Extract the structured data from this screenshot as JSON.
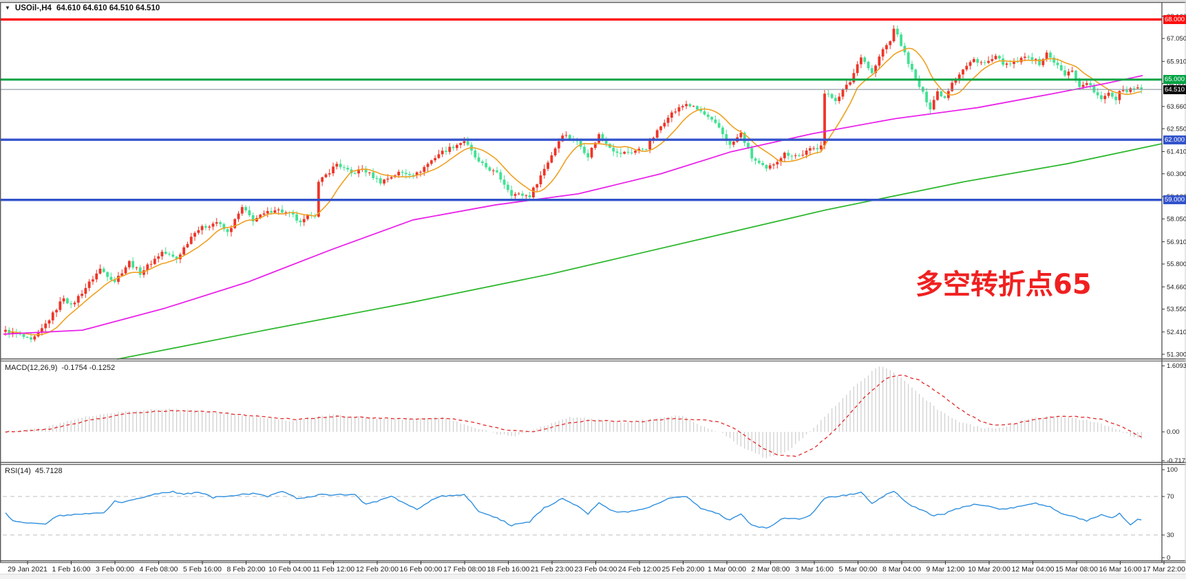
{
  "info_bar": {
    "symbol": "USOil-,H4",
    "ohlc_text": "64.610 64.610 64.510 64.510"
  },
  "annotation": {
    "text": "多空转折点65",
    "color": "#f02020"
  },
  "indicators": {
    "macd": {
      "label": "MACD(12,26,9)",
      "values_text": "-0.1754 -0.1252"
    },
    "rsi": {
      "label": "RSI(14)",
      "value_text": "45.7128"
    }
  },
  "colors": {
    "bull": "#ee3528",
    "bear": "#41e293",
    "ma_orange": "#efa020",
    "ma_magenta": "#e922e9",
    "ma_green": "#2eb82e",
    "hline_red": "#fe0d0d",
    "hline_green": "#00a344",
    "hline_blue": "#3353cb",
    "price_line": "#85919b",
    "price_badge_bg": "#0c0c0c",
    "macd_hist": "#cdcdcd",
    "macd_signal": "#e02828",
    "rsi_line": "#2e8ede",
    "level_dash": "#bdbdbd",
    "axis_text": "#1c1c1c",
    "border": "#5a5a5a"
  },
  "chart_data": {
    "type": "candlestick",
    "symbol": "USOil-",
    "timeframe": "H4",
    "title": "USOil-,H4 64.610 64.610 64.510 64.510",
    "legend_note": "red = bullish candle, green = bearish candle (CN convention)",
    "x_labels": [
      "29 Jan 2021",
      "1 Feb 16:00",
      "3 Feb 00:00",
      "4 Feb 08:00",
      "5 Feb 16:00",
      "8 Feb 20:00",
      "10 Feb 04:00",
      "11 Feb 12:00",
      "12 Feb 20:00",
      "16 Feb 00:00",
      "17 Feb 08:00",
      "18 Feb 16:00",
      "21 Feb 23:00",
      "23 Feb 04:00",
      "24 Feb 12:00",
      "25 Feb 20:00",
      "1 Mar 00:00",
      "2 Mar 08:00",
      "3 Mar 16:00",
      "5 Mar 00:00",
      "8 Mar 04:00",
      "9 Mar 12:00",
      "10 Mar 20:00",
      "12 Mar 04:00",
      "15 Mar 08:00",
      "16 Mar 16:00",
      "17 Mar 22:00"
    ],
    "main": {
      "ylim": [
        51.3,
        68.16
      ],
      "y_ticks": [
        {
          "label": "68.160",
          "p": 68.16
        },
        {
          "label": "67.050",
          "p": 67.05
        },
        {
          "label": "65.910",
          "p": 65.91
        },
        {
          "label": "64.800",
          "p": 64.8
        },
        {
          "label": "63.660",
          "p": 63.66
        },
        {
          "label": "62.550",
          "p": 62.55
        },
        {
          "label": "61.410",
          "p": 61.41
        },
        {
          "label": "60.300",
          "p": 60.3
        },
        {
          "label": "59.160",
          "p": 59.16
        },
        {
          "label": "58.050",
          "p": 58.05
        },
        {
          "label": "56.910",
          "p": 56.91
        },
        {
          "label": "55.800",
          "p": 55.8
        },
        {
          "label": "54.660",
          "p": 54.66
        },
        {
          "label": "53.550",
          "p": 53.55
        },
        {
          "label": "52.410",
          "p": 52.41
        },
        {
          "label": "51.300",
          "p": 51.3
        }
      ],
      "h_lines": [
        {
          "price": 68.0,
          "label": "68.000",
          "color": "#fe0d0d",
          "width": 3.4
        },
        {
          "price": 65.0,
          "label": "65.000",
          "color": "#00a344",
          "width": 3.0
        },
        {
          "price": 62.0,
          "label": "62.000",
          "color": "#3353cb",
          "width": 3.4
        },
        {
          "price": 59.0,
          "label": "59.000",
          "color": "#3353cb",
          "width": 3.4
        }
      ],
      "price_line": {
        "price": 64.51,
        "label": "64.510"
      },
      "swings": [
        [
          0,
          52.45
        ],
        [
          4,
          52.25
        ],
        [
          7,
          51.95
        ],
        [
          9,
          52.3
        ],
        [
          13,
          53.3
        ],
        [
          16,
          54.15
        ],
        [
          18,
          53.7
        ],
        [
          26,
          55.55
        ],
        [
          30,
          54.95
        ],
        [
          34,
          55.9
        ],
        [
          37,
          55.35
        ],
        [
          43,
          56.4
        ],
        [
          47,
          56.05
        ],
        [
          52,
          57.45
        ],
        [
          58,
          57.9
        ],
        [
          61,
          57.35
        ],
        [
          65,
          58.6
        ],
        [
          68,
          58.0
        ],
        [
          74,
          58.55
        ],
        [
          79,
          58.2
        ],
        [
          81,
          57.8
        ],
        [
          84,
          58.3
        ],
        [
          85,
          58.25
        ],
        [
          86,
          59.85
        ],
        [
          91,
          60.8
        ],
        [
          95,
          60.3
        ],
        [
          98,
          60.55
        ],
        [
          103,
          59.9
        ],
        [
          108,
          60.35
        ],
        [
          113,
          60.3
        ],
        [
          119,
          61.3
        ],
        [
          126,
          61.95
        ],
        [
          130,
          60.85
        ],
        [
          135,
          60.3
        ],
        [
          139,
          59.3
        ],
        [
          144,
          59.2
        ],
        [
          148,
          60.55
        ],
        [
          153,
          62.3
        ],
        [
          157,
          61.9
        ],
        [
          160,
          61.2
        ],
        [
          163,
          62.25
        ],
        [
          168,
          61.3
        ],
        [
          172,
          61.4
        ],
        [
          176,
          61.6
        ],
        [
          182,
          63.2
        ],
        [
          187,
          63.8
        ],
        [
          191,
          63.4
        ],
        [
          196,
          62.6
        ],
        [
          199,
          61.7
        ],
        [
          202,
          62.3
        ],
        [
          205,
          61.1
        ],
        [
          209,
          60.5
        ],
        [
          214,
          61.3
        ],
        [
          218,
          61.2
        ],
        [
          221,
          61.5
        ],
        [
          223,
          61.6
        ],
        [
          224,
          61.8
        ],
        [
          225,
          64.3
        ],
        [
          228,
          64.0
        ],
        [
          232,
          64.9
        ],
        [
          235,
          66.2
        ],
        [
          238,
          65.3
        ],
        [
          241,
          66.5
        ],
        [
          243,
          66.9
        ],
        [
          244,
          67.6
        ],
        [
          247,
          66.3
        ],
        [
          250,
          65.0
        ],
        [
          252,
          64.3
        ],
        [
          254,
          63.6
        ],
        [
          256,
          64.4
        ],
        [
          258,
          64.1
        ],
        [
          260,
          64.9
        ],
        [
          263,
          65.5
        ],
        [
          266,
          66.0
        ],
        [
          269,
          65.8
        ],
        [
          272,
          66.1
        ],
        [
          275,
          65.7
        ],
        [
          278,
          65.9
        ],
        [
          281,
          66.2
        ],
        [
          284,
          65.8
        ],
        [
          286,
          66.3
        ],
        [
          288,
          65.9
        ],
        [
          291,
          65.2
        ],
        [
          293,
          65.5
        ],
        [
          295,
          64.6
        ],
        [
          297,
          64.9
        ],
        [
          299,
          64.4
        ],
        [
          301,
          63.95
        ],
        [
          303,
          64.4
        ],
        [
          305,
          64.0
        ],
        [
          306,
          64.5
        ],
        [
          308,
          64.45
        ],
        [
          310,
          64.65
        ],
        [
          311,
          64.61
        ],
        [
          312,
          64.51
        ]
      ],
      "ma_orange_window": 10,
      "ma_magenta": [
        [
          5,
          52.3
        ],
        [
          120,
          52.5
        ],
        [
          240,
          53.6
        ],
        [
          360,
          54.9
        ],
        [
          480,
          56.5
        ],
        [
          600,
          58.0
        ],
        [
          720,
          58.75
        ],
        [
          840,
          59.3
        ],
        [
          960,
          60.3
        ],
        [
          1062,
          61.4
        ],
        [
          1180,
          62.3
        ],
        [
          1300,
          63.05
        ],
        [
          1420,
          63.6
        ],
        [
          1530,
          64.3
        ],
        [
          1605,
          64.8
        ],
        [
          1660,
          65.2
        ]
      ],
      "ma_green": [
        [
          170,
          51.05
        ],
        [
          400,
          52.6
        ],
        [
          600,
          53.9
        ],
        [
          800,
          55.3
        ],
        [
          1000,
          56.9
        ],
        [
          1200,
          58.5
        ],
        [
          1400,
          59.9
        ],
        [
          1550,
          60.8
        ],
        [
          1688,
          61.8
        ]
      ]
    },
    "macd": {
      "params": [
        12,
        26,
        9
      ],
      "current_main": -0.1754,
      "current_signal": -0.1252,
      "y_ticks": [
        {
          "label": "1.6093",
          "v": 1.6093
        },
        {
          "label": "0.00",
          "v": 0
        },
        {
          "label": "-0.7172",
          "v": -0.7172
        }
      ],
      "hist": [
        [
          0,
          0.02
        ],
        [
          10,
          0.08
        ],
        [
          21,
          0.35
        ],
        [
          33,
          0.5
        ],
        [
          44,
          0.55
        ],
        [
          55,
          0.5
        ],
        [
          66,
          0.4
        ],
        [
          78,
          0.26
        ],
        [
          89,
          0.42
        ],
        [
          100,
          0.34
        ],
        [
          111,
          0.3
        ],
        [
          120,
          0.36
        ],
        [
          129,
          0.1
        ],
        [
          135,
          -0.05
        ],
        [
          140,
          -0.1
        ],
        [
          148,
          0.15
        ],
        [
          155,
          0.35
        ],
        [
          163,
          0.3
        ],
        [
          170,
          0.22
        ],
        [
          178,
          0.32
        ],
        [
          186,
          0.4
        ],
        [
          191,
          0.15
        ],
        [
          197,
          -0.05
        ],
        [
          202,
          -0.35
        ],
        [
          209,
          -0.65
        ],
        [
          215,
          -0.45
        ],
        [
          221,
          0.0
        ],
        [
          227,
          0.55
        ],
        [
          233,
          1.1
        ],
        [
          240,
          1.6
        ],
        [
          244,
          1.45
        ],
        [
          250,
          1.0
        ],
        [
          256,
          0.55
        ],
        [
          262,
          0.25
        ],
        [
          268,
          0.1
        ],
        [
          274,
          0.1
        ],
        [
          280,
          0.3
        ],
        [
          287,
          0.38
        ],
        [
          293,
          0.33
        ],
        [
          297,
          0.28
        ],
        [
          300,
          0.22
        ],
        [
          303,
          0.12
        ],
        [
          306,
          0.04
        ],
        [
          309,
          -0.1
        ],
        [
          312,
          -0.1754
        ]
      ],
      "signal": [
        [
          0,
          0.0
        ],
        [
          12,
          0.06
        ],
        [
          23,
          0.28
        ],
        [
          34,
          0.45
        ],
        [
          46,
          0.52
        ],
        [
          57,
          0.48
        ],
        [
          68,
          0.39
        ],
        [
          80,
          0.3
        ],
        [
          91,
          0.37
        ],
        [
          102,
          0.34
        ],
        [
          113,
          0.31
        ],
        [
          122,
          0.33
        ],
        [
          131,
          0.18
        ],
        [
          138,
          0.04
        ],
        [
          145,
          0.0
        ],
        [
          153,
          0.18
        ],
        [
          160,
          0.28
        ],
        [
          168,
          0.26
        ],
        [
          175,
          0.25
        ],
        [
          183,
          0.32
        ],
        [
          190,
          0.3
        ],
        [
          196,
          0.25
        ],
        [
          200,
          0.1
        ],
        [
          204,
          -0.15
        ],
        [
          208,
          -0.4
        ],
        [
          212,
          -0.55
        ],
        [
          217,
          -0.6
        ],
        [
          222,
          -0.4
        ],
        [
          226,
          -0.1
        ],
        [
          230,
          0.25
        ],
        [
          236,
          0.85
        ],
        [
          242,
          1.3
        ],
        [
          246,
          1.38
        ],
        [
          251,
          1.25
        ],
        [
          257,
          0.9
        ],
        [
          263,
          0.5
        ],
        [
          268,
          0.25
        ],
        [
          272,
          0.16
        ],
        [
          277,
          0.2
        ],
        [
          283,
          0.3
        ],
        [
          290,
          0.38
        ],
        [
          296,
          0.36
        ],
        [
          301,
          0.3
        ],
        [
          305,
          0.18
        ],
        [
          308,
          0.06
        ],
        [
          310,
          -0.03
        ],
        [
          312,
          -0.1252
        ]
      ]
    },
    "rsi": {
      "period": 14,
      "current": 45.7128,
      "y_ticks": [
        {
          "label": "100",
          "v": 100
        },
        {
          "label": "70",
          "v": 70
        },
        {
          "label": "30",
          "v": 30
        },
        {
          "label": "0",
          "v": 0
        }
      ],
      "levels": [
        70,
        30
      ],
      "line": [
        [
          0,
          53
        ],
        [
          2,
          45
        ],
        [
          6,
          42
        ],
        [
          11,
          41.5
        ],
        [
          14,
          50
        ],
        [
          18,
          51
        ],
        [
          27,
          53
        ],
        [
          30,
          65
        ],
        [
          32,
          63.5
        ],
        [
          36,
          68
        ],
        [
          42,
          73
        ],
        [
          46,
          75
        ],
        [
          49,
          72
        ],
        [
          53,
          75
        ],
        [
          57,
          69
        ],
        [
          61,
          71
        ],
        [
          68,
          73
        ],
        [
          72,
          70
        ],
        [
          76,
          76
        ],
        [
          80,
          68
        ],
        [
          87,
          72
        ],
        [
          96,
          72
        ],
        [
          99,
          61.5
        ],
        [
          103,
          66
        ],
        [
          106,
          70
        ],
        [
          110,
          62
        ],
        [
          113,
          57
        ],
        [
          119,
          70
        ],
        [
          126,
          72
        ],
        [
          130,
          55
        ],
        [
          135,
          48
        ],
        [
          139,
          40
        ],
        [
          144,
          44
        ],
        [
          148,
          58
        ],
        [
          153,
          68
        ],
        [
          157,
          60
        ],
        [
          160,
          52
        ],
        [
          163,
          63
        ],
        [
          168,
          53
        ],
        [
          172,
          55
        ],
        [
          176,
          58
        ],
        [
          182,
          68
        ],
        [
          187,
          70
        ],
        [
          191,
          58
        ],
        [
          196,
          52
        ],
        [
          199,
          45
        ],
        [
          202,
          52
        ],
        [
          205,
          40
        ],
        [
          209,
          37
        ],
        [
          214,
          48
        ],
        [
          218,
          46
        ],
        [
          221,
          50
        ],
        [
          225,
          68
        ],
        [
          228,
          70
        ],
        [
          232,
          72
        ],
        [
          235,
          75
        ],
        [
          238,
          62
        ],
        [
          241,
          70
        ],
        [
          244,
          76
        ],
        [
          248,
          62
        ],
        [
          252,
          55
        ],
        [
          255,
          50
        ],
        [
          258,
          52
        ],
        [
          261,
          57
        ],
        [
          264,
          60
        ],
        [
          267,
          62
        ],
        [
          270,
          60
        ],
        [
          273,
          57
        ],
        [
          276,
          58
        ],
        [
          279,
          60
        ],
        [
          283,
          63
        ],
        [
          287,
          59
        ],
        [
          290,
          52
        ],
        [
          293,
          50
        ],
        [
          297,
          44.4
        ],
        [
          301,
          51
        ],
        [
          304,
          47.5
        ],
        [
          306,
          53
        ],
        [
          309,
          40.5
        ],
        [
          311,
          47
        ],
        [
          312,
          45.71
        ]
      ]
    }
  }
}
